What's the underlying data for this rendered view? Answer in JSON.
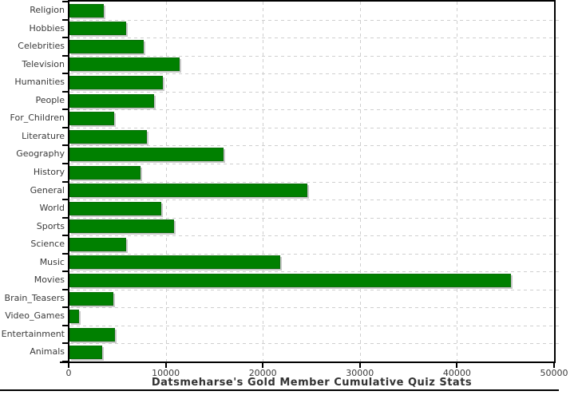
{
  "chart_data": {
    "type": "bar",
    "orientation": "horizontal",
    "title": "Datsmeharse's Gold Member Cumulative Quiz Stats",
    "categories": [
      "Religion",
      "Hobbies",
      "Celebrities",
      "Television",
      "Humanities",
      "People",
      "For_Children",
      "Literature",
      "Geography",
      "History",
      "General",
      "World",
      "Sports",
      "Science",
      "Music",
      "Movies",
      "Brain_Teasers",
      "Video_Games",
      "Entertainment",
      "Animals"
    ],
    "values": [
      3500,
      5800,
      7650,
      11350,
      9600,
      8700,
      4600,
      8000,
      15900,
      7350,
      24500,
      9450,
      10800,
      5850,
      21700,
      45500,
      4500,
      950,
      4700,
      3400
    ],
    "xlabel": "",
    "ylabel": "",
    "xlim": [
      0,
      50000
    ],
    "x_ticks": [
      0,
      10000,
      20000,
      30000,
      40000,
      50000
    ],
    "x_tick_labels": [
      "0",
      "10000",
      "20000",
      "30000",
      "40000",
      "50000"
    ],
    "grid": true,
    "legend_position": "none",
    "bar_color": "#008000",
    "bar_shadow_color": "#c9c9c9",
    "grid_color": "#cfcfcf",
    "axis_color": "#000000",
    "text_color": "#3b3b3b"
  }
}
